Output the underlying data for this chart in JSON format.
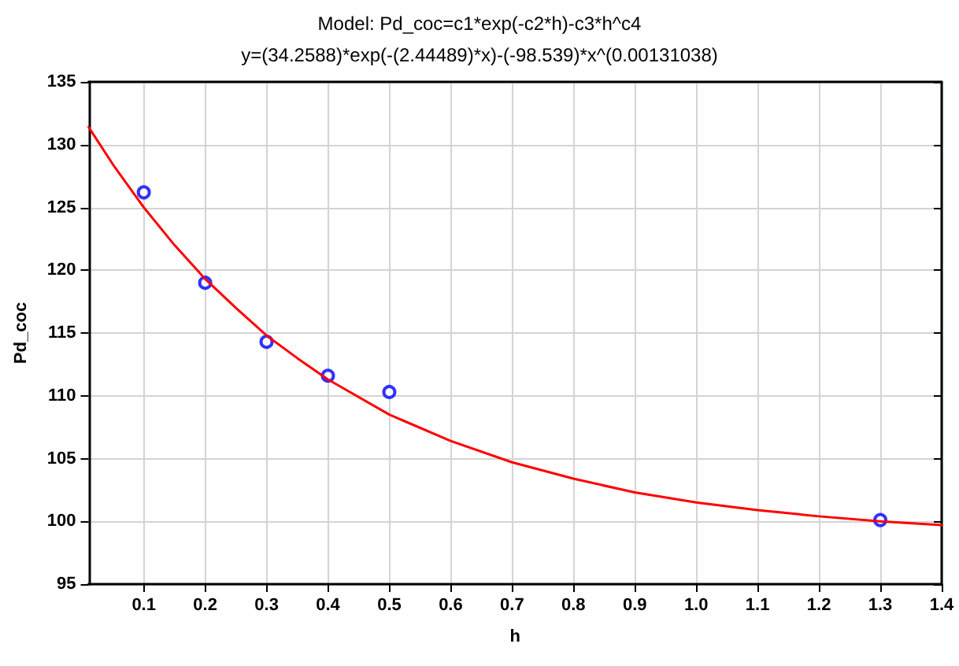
{
  "chart_data": {
    "type": "scatter",
    "title": "Model: Pd_coc=c1*exp(-c2*h)-c3*h^c4",
    "subtitle": "y=(34.2588)*exp(-(2.44489)*x)-(-98.539)*x^(0.00131038)",
    "xlabel": "h",
    "ylabel": "Pd_coc",
    "xlim": [
      0.01,
      1.4
    ],
    "xticks": [
      0.1,
      0.2,
      0.3,
      0.4,
      0.5,
      0.6,
      0.7,
      0.8,
      0.9,
      {
        "value": 1.0,
        "label": "1.0"
      },
      1.1,
      1.2,
      1.3,
      1.4
    ],
    "ylim": [
      95,
      135
    ],
    "yticks": [
      95,
      100,
      105,
      110,
      115,
      120,
      125,
      130,
      135
    ],
    "grid": true,
    "series": [
      {
        "color": "#0000ff",
        "marker": "circle",
        "x": [
          0.1,
          0.2,
          0.3,
          0.4,
          0.5,
          1.3
        ],
        "values": [
          126.2,
          119,
          114.3,
          111.6,
          110.3,
          100.1
        ]
      },
      {
        "type": "line",
        "color": "#ff0000",
        "marker": "none",
        "line_style": "solid",
        "x": [
          0.01,
          0.05,
          0.1,
          0.15,
          0.2,
          0.25,
          0.3,
          0.35,
          0.4,
          0.5,
          0.6,
          0.7,
          0.8,
          0.9,
          1.0,
          1.1,
          1.2,
          1.3,
          1.4
        ],
        "values": [
          131.4,
          128.4,
          125.0,
          122.0,
          119.3,
          117.0,
          114.8,
          113.0,
          111.3,
          108.5,
          106.4,
          104.7,
          103.4,
          102.3,
          101.5,
          100.9,
          100.4,
          100.0,
          99.7
        ]
      }
    ]
  }
}
